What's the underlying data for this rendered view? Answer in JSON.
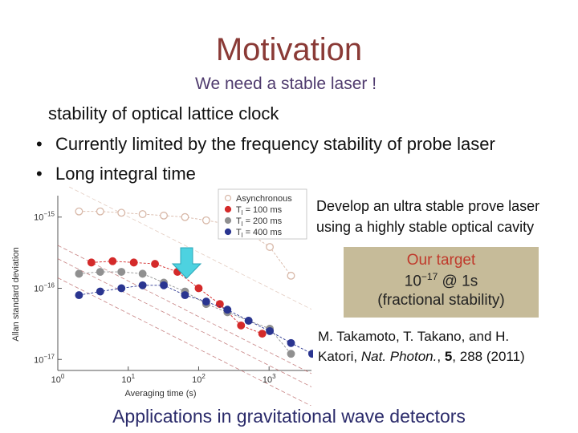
{
  "title": "Motivation",
  "subtitle": "We need a stable laser !",
  "intro": "stability of optical lattice clock",
  "bullets": [
    "Currently limited by the frequency stability of probe laser",
    "Long integral time"
  ],
  "develop": [
    "Develop an ultra stable prove laser",
    "using a highly stable optical cavity"
  ],
  "target": {
    "label": "Our target",
    "value_base": "10",
    "value_exp": "−17",
    "value_suffix": " @ 1s",
    "note": "(fractional stability)"
  },
  "reference": {
    "line1": "M. Takamoto, T. Takano, and H.",
    "line2_prefix": "Katori, ",
    "journal": "Nat. Photon.",
    "line2_mid": ", ",
    "volume": "5",
    "line2_suffix": ", 288 (2011)"
  },
  "footer": "Applications in gravitational wave detectors",
  "colors": {
    "title": "#8a3a36",
    "target_box": "#c6bb99",
    "target_label": "#c0392b",
    "arrow": "#4dd2e0",
    "async": "#d8b8a8",
    "t100": "#d42a2a",
    "t200": "#909090",
    "t400": "#2a3590"
  },
  "chart_data": {
    "type": "scatter",
    "xlabel": "Averaging time (s)",
    "ylabel": "Allan standard deviation",
    "xscale": "log",
    "yscale": "log",
    "xlim": [
      1,
      4000
    ],
    "ylim": [
      7e-18,
      2e-15
    ],
    "xticks": [
      {
        "value": 1,
        "base": "10",
        "exp": "0"
      },
      {
        "value": 10,
        "base": "10",
        "exp": "1"
      },
      {
        "value": 100,
        "base": "10",
        "exp": "2"
      },
      {
        "value": 1000,
        "base": "10",
        "exp": "3"
      }
    ],
    "yticks": [
      {
        "value": 1e-15,
        "base": "10",
        "exp": "−15"
      },
      {
        "value": 1e-16,
        "base": "10",
        "exp": "−16"
      },
      {
        "value": 1e-17,
        "base": "10",
        "exp": "−17"
      }
    ],
    "legend_position": "top-right",
    "series": [
      {
        "name_base": "Asynchronous",
        "name_sub": "",
        "name_suffix": "",
        "marker": "open",
        "color": "#d8b8a8",
        "x": [
          2,
          4,
          8,
          16,
          32,
          64,
          128,
          256,
          512,
          1024,
          2048
        ],
        "y": [
          1.2e-15,
          1.2e-15,
          1.15e-15,
          1.1e-15,
          1.05e-15,
          1e-15,
          9e-16,
          8e-16,
          6e-16,
          3.8e-16,
          1.5e-16
        ]
      },
      {
        "name_base": "T",
        "name_sub": "l",
        "name_suffix": " = 100 ms",
        "marker": "filled",
        "color": "#d42a2a",
        "x": [
          3,
          6,
          12,
          24,
          50,
          100,
          200,
          400,
          800
        ],
        "y": [
          2.3e-16,
          2.4e-16,
          2.3e-16,
          2.2e-16,
          1.7e-16,
          1e-16,
          6e-17,
          3e-17,
          2.3e-17
        ]
      },
      {
        "name_base": "T",
        "name_sub": "l",
        "name_suffix": " = 200 ms",
        "marker": "filled",
        "color": "#909090",
        "x": [
          2,
          4,
          8,
          16,
          32,
          64,
          128,
          256,
          512,
          1024,
          2048
        ],
        "y": [
          1.6e-16,
          1.7e-16,
          1.7e-16,
          1.6e-16,
          1.2e-16,
          9e-17,
          6e-17,
          4.6e-17,
          3.5e-17,
          2.7e-17,
          1.2e-17
        ]
      },
      {
        "name_base": "T",
        "name_sub": "l",
        "name_suffix": " = 400 ms",
        "marker": "filled",
        "color": "#2a3590",
        "x": [
          2,
          4,
          8,
          16,
          32,
          64,
          128,
          256,
          512,
          1024,
          2048,
          4096
        ],
        "y": [
          8e-17,
          9e-17,
          1e-16,
          1.1e-16,
          1.1e-16,
          8e-17,
          6.5e-17,
          5e-17,
          3.5e-17,
          2.5e-17,
          1.7e-17,
          1.2e-17
        ]
      }
    ]
  }
}
